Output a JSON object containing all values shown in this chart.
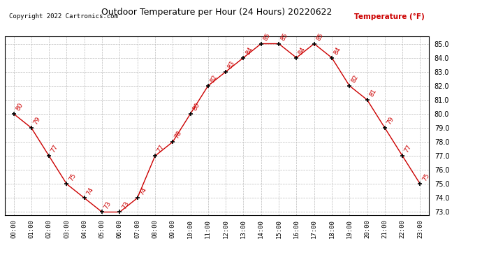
{
  "title": "Outdoor Temperature per Hour (24 Hours) 20220622",
  "copyright": "Copyright 2022 Cartronics.com",
  "legend_label": "Temperature (°F)",
  "hours": [
    "00:00",
    "01:00",
    "02:00",
    "03:00",
    "04:00",
    "05:00",
    "06:00",
    "07:00",
    "08:00",
    "09:00",
    "10:00",
    "11:00",
    "12:00",
    "13:00",
    "14:00",
    "15:00",
    "16:00",
    "17:00",
    "18:00",
    "19:00",
    "20:00",
    "21:00",
    "22:00",
    "23:00"
  ],
  "temps": [
    80,
    79,
    77,
    75,
    74,
    73,
    73,
    74,
    77,
    78,
    80,
    82,
    83,
    84,
    85,
    85,
    84,
    85,
    84,
    82,
    81,
    79,
    77,
    75
  ],
  "ylim_min": 73.0,
  "ylim_max": 85.5,
  "yticks": [
    73.0,
    74.0,
    75.0,
    76.0,
    77.0,
    78.0,
    79.0,
    80.0,
    81.0,
    82.0,
    83.0,
    84.0,
    85.0
  ],
  "line_color": "#cc0000",
  "marker_color": "#000000",
  "label_color": "#cc0000",
  "title_color": "#000000",
  "copyright_color": "#000000",
  "legend_color": "#cc0000",
  "bg_color": "#ffffff",
  "grid_color": "#bbbbbb",
  "fig_width": 6.9,
  "fig_height": 3.75,
  "dpi": 100
}
